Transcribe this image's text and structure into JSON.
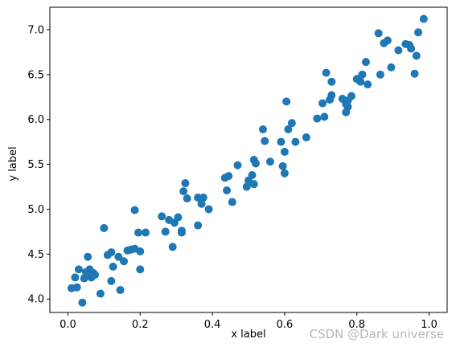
{
  "watermark": "CSDN @Dark universe",
  "chart_data": {
    "type": "scatter",
    "xlabel": "x label",
    "ylabel": "y label",
    "xlim": [
      -0.05,
      1.05
    ],
    "ylim": [
      3.85,
      7.25
    ],
    "xticks": [
      0.0,
      0.2,
      0.4,
      0.6,
      0.8,
      1.0
    ],
    "xtick_labels": [
      "0.0",
      "0.2",
      "0.4",
      "0.6",
      "0.8",
      "1.0"
    ],
    "yticks": [
      4.0,
      4.5,
      5.0,
      5.5,
      6.0,
      6.5,
      7.0
    ],
    "ytick_labels": [
      "4.0",
      "4.5",
      "5.0",
      "5.5",
      "6.0",
      "6.5",
      "7.0"
    ],
    "grid": false,
    "legend": false,
    "colors": {
      "marker": "#1f77b4",
      "axis": "#000000"
    },
    "series": [
      {
        "x": [
          0.01,
          0.02,
          0.025,
          0.03,
          0.04,
          0.045,
          0.05,
          0.055,
          0.06,
          0.065,
          0.07,
          0.075,
          0.09,
          0.1,
          0.11,
          0.12,
          0.12,
          0.125,
          0.14,
          0.145,
          0.155,
          0.165,
          0.175,
          0.185,
          0.185,
          0.195,
          0.2,
          0.2,
          0.215,
          0.26,
          0.27,
          0.28,
          0.29,
          0.295,
          0.305,
          0.315,
          0.315,
          0.32,
          0.325,
          0.33,
          0.36,
          0.36,
          0.37,
          0.375,
          0.39,
          0.435,
          0.44,
          0.445,
          0.455,
          0.47,
          0.495,
          0.5,
          0.51,
          0.515,
          0.515,
          0.52,
          0.54,
          0.545,
          0.56,
          0.59,
          0.595,
          0.6,
          0.6,
          0.605,
          0.61,
          0.62,
          0.63,
          0.66,
          0.69,
          0.705,
          0.71,
          0.715,
          0.725,
          0.73,
          0.73,
          0.76,
          0.77,
          0.77,
          0.775,
          0.775,
          0.785,
          0.8,
          0.81,
          0.815,
          0.825,
          0.83,
          0.86,
          0.865,
          0.875,
          0.885,
          0.895,
          0.915,
          0.935,
          0.945,
          0.95,
          0.96,
          0.965,
          0.97,
          0.985
        ],
        "y": [
          4.12,
          4.24,
          4.13,
          4.33,
          3.96,
          4.23,
          4.3,
          4.47,
          4.33,
          4.24,
          4.29,
          4.27,
          4.06,
          4.79,
          4.49,
          4.52,
          4.2,
          4.36,
          4.47,
          4.1,
          4.42,
          4.54,
          4.55,
          4.56,
          4.99,
          4.74,
          4.53,
          4.33,
          4.74,
          4.92,
          4.75,
          4.88,
          4.58,
          4.85,
          4.91,
          4.76,
          4.74,
          5.2,
          5.29,
          5.12,
          4.82,
          5.13,
          5.06,
          5.13,
          5.0,
          5.35,
          5.21,
          5.37,
          5.08,
          5.49,
          5.25,
          5.32,
          5.38,
          5.55,
          5.28,
          5.51,
          5.89,
          5.76,
          5.53,
          5.75,
          5.48,
          5.4,
          5.64,
          6.2,
          5.89,
          5.96,
          5.75,
          5.8,
          6.01,
          6.18,
          6.03,
          6.52,
          6.22,
          6.42,
          6.27,
          6.23,
          6.17,
          6.08,
          6.14,
          6.21,
          6.26,
          6.45,
          6.42,
          6.5,
          6.64,
          6.39,
          6.96,
          6.5,
          6.85,
          6.88,
          6.58,
          6.77,
          6.84,
          6.83,
          6.79,
          6.51,
          6.71,
          6.97,
          7.12
        ]
      }
    ]
  }
}
